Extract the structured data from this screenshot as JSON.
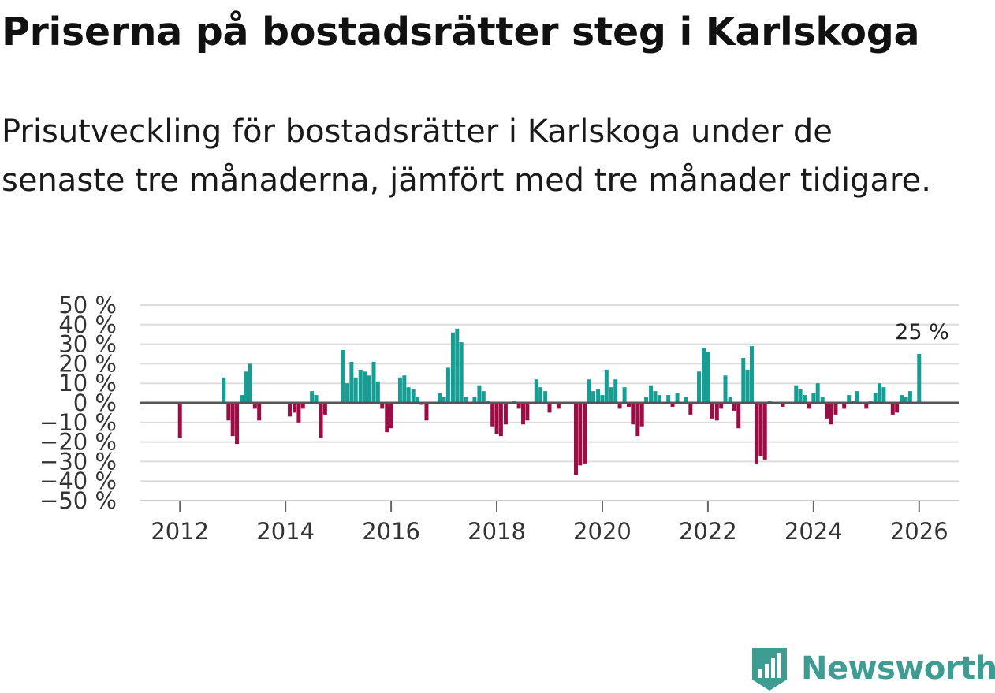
{
  "title": "Priserna på bostadsrätter steg i Karlskoga",
  "subtitle": "Prisutveckling för bostadsrätter i Karlskoga under de senaste tre månaderna, jämfört med tre månader tidigare.",
  "brand": {
    "name": "Newsworthy",
    "color": "#3f9c93"
  },
  "colors": {
    "positive": "#169e95",
    "negative": "#9c0c45",
    "grid": "#dddddd",
    "zero": "#555555"
  },
  "chart_data": {
    "type": "bar",
    "title": "Priserna på bostadsrätter steg i Karlskoga",
    "xlabel": "",
    "ylabel": "",
    "y_unit": " %",
    "ylim": [
      -50,
      50
    ],
    "y_ticks": [
      50,
      40,
      30,
      20,
      10,
      0,
      -10,
      -20,
      -30,
      -40,
      -50
    ],
    "y_tick_labels": [
      "50 %",
      "40 %",
      "30 %",
      "20 %",
      "10 %",
      "0 %",
      "−10 %",
      "−20 %",
      "−30 %",
      "−40 %",
      "−50 %"
    ],
    "xlim": [
      2011.25,
      2026.75
    ],
    "x_ticks": [
      2012,
      2014,
      2016,
      2018,
      2020,
      2022,
      2024,
      2026
    ],
    "x_tick_labels": [
      "2012",
      "2014",
      "2016",
      "2018",
      "2020",
      "2022",
      "2024",
      "2026"
    ],
    "grid": true,
    "annotation": {
      "text": "25 %",
      "x": 2026.0,
      "value": 25
    },
    "series": [
      {
        "name": "Prisutveckling",
        "points": [
          {
            "x": 2012.0,
            "y": -18
          },
          {
            "x": 2012.83,
            "y": 13
          },
          {
            "x": 2012.92,
            "y": -9
          },
          {
            "x": 2013.0,
            "y": -17
          },
          {
            "x": 2013.08,
            "y": -21
          },
          {
            "x": 2013.17,
            "y": 4
          },
          {
            "x": 2013.25,
            "y": 16
          },
          {
            "x": 2013.33,
            "y": 20
          },
          {
            "x": 2013.42,
            "y": -3
          },
          {
            "x": 2013.5,
            "y": -9
          },
          {
            "x": 2014.08,
            "y": -7
          },
          {
            "x": 2014.17,
            "y": -5
          },
          {
            "x": 2014.25,
            "y": -10
          },
          {
            "x": 2014.33,
            "y": -3
          },
          {
            "x": 2014.5,
            "y": 6
          },
          {
            "x": 2014.58,
            "y": 4
          },
          {
            "x": 2014.67,
            "y": -18
          },
          {
            "x": 2014.75,
            "y": -6
          },
          {
            "x": 2015.08,
            "y": 27
          },
          {
            "x": 2015.17,
            "y": 10
          },
          {
            "x": 2015.25,
            "y": 21
          },
          {
            "x": 2015.33,
            "y": 13
          },
          {
            "x": 2015.42,
            "y": 17
          },
          {
            "x": 2015.5,
            "y": 16
          },
          {
            "x": 2015.58,
            "y": 14
          },
          {
            "x": 2015.67,
            "y": 21
          },
          {
            "x": 2015.75,
            "y": 11
          },
          {
            "x": 2015.83,
            "y": -3
          },
          {
            "x": 2015.92,
            "y": -15
          },
          {
            "x": 2016.0,
            "y": -13
          },
          {
            "x": 2016.17,
            "y": 13
          },
          {
            "x": 2016.25,
            "y": 14
          },
          {
            "x": 2016.33,
            "y": 8
          },
          {
            "x": 2016.42,
            "y": 7
          },
          {
            "x": 2016.5,
            "y": 3
          },
          {
            "x": 2016.58,
            "y": -1
          },
          {
            "x": 2016.67,
            "y": -9
          },
          {
            "x": 2016.92,
            "y": 5
          },
          {
            "x": 2017.0,
            "y": 3
          },
          {
            "x": 2017.08,
            "y": 18
          },
          {
            "x": 2017.17,
            "y": 36
          },
          {
            "x": 2017.25,
            "y": 38
          },
          {
            "x": 2017.33,
            "y": 31
          },
          {
            "x": 2017.42,
            "y": 3
          },
          {
            "x": 2017.58,
            "y": 3
          },
          {
            "x": 2017.67,
            "y": 9
          },
          {
            "x": 2017.75,
            "y": 6
          },
          {
            "x": 2017.83,
            "y": 1
          },
          {
            "x": 2017.92,
            "y": -12
          },
          {
            "x": 2018.0,
            "y": -16
          },
          {
            "x": 2018.08,
            "y": -17
          },
          {
            "x": 2018.17,
            "y": -11
          },
          {
            "x": 2018.33,
            "y": 1
          },
          {
            "x": 2018.42,
            "y": -3
          },
          {
            "x": 2018.5,
            "y": -11
          },
          {
            "x": 2018.58,
            "y": -9
          },
          {
            "x": 2018.75,
            "y": 12
          },
          {
            "x": 2018.83,
            "y": 8
          },
          {
            "x": 2018.92,
            "y": 6
          },
          {
            "x": 2019.0,
            "y": -5
          },
          {
            "x": 2019.17,
            "y": -3
          },
          {
            "x": 2019.5,
            "y": -37
          },
          {
            "x": 2019.58,
            "y": -32
          },
          {
            "x": 2019.67,
            "y": -31
          },
          {
            "x": 2019.75,
            "y": 12
          },
          {
            "x": 2019.83,
            "y": 6
          },
          {
            "x": 2019.92,
            "y": 7
          },
          {
            "x": 2020.0,
            "y": 4
          },
          {
            "x": 2020.08,
            "y": 17
          },
          {
            "x": 2020.17,
            "y": 8
          },
          {
            "x": 2020.25,
            "y": 12
          },
          {
            "x": 2020.33,
            "y": -3
          },
          {
            "x": 2020.42,
            "y": 8
          },
          {
            "x": 2020.5,
            "y": -2
          },
          {
            "x": 2020.58,
            "y": -11
          },
          {
            "x": 2020.67,
            "y": -17
          },
          {
            "x": 2020.75,
            "y": -12
          },
          {
            "x": 2020.83,
            "y": 3
          },
          {
            "x": 2020.92,
            "y": 9
          },
          {
            "x": 2021.0,
            "y": 6
          },
          {
            "x": 2021.08,
            "y": 4
          },
          {
            "x": 2021.25,
            "y": 4
          },
          {
            "x": 2021.33,
            "y": -2
          },
          {
            "x": 2021.42,
            "y": 5
          },
          {
            "x": 2021.58,
            "y": 3
          },
          {
            "x": 2021.67,
            "y": -6
          },
          {
            "x": 2021.83,
            "y": 16
          },
          {
            "x": 2021.92,
            "y": 28
          },
          {
            "x": 2022.0,
            "y": 26
          },
          {
            "x": 2022.08,
            "y": -8
          },
          {
            "x": 2022.17,
            "y": -9
          },
          {
            "x": 2022.25,
            "y": -3
          },
          {
            "x": 2022.33,
            "y": 14
          },
          {
            "x": 2022.42,
            "y": 3
          },
          {
            "x": 2022.5,
            "y": -4
          },
          {
            "x": 2022.58,
            "y": -13
          },
          {
            "x": 2022.67,
            "y": 23
          },
          {
            "x": 2022.75,
            "y": 17
          },
          {
            "x": 2022.83,
            "y": 29
          },
          {
            "x": 2022.92,
            "y": -31
          },
          {
            "x": 2023.0,
            "y": -27
          },
          {
            "x": 2023.08,
            "y": -29
          },
          {
            "x": 2023.17,
            "y": 1
          },
          {
            "x": 2023.42,
            "y": -2
          },
          {
            "x": 2023.67,
            "y": 9
          },
          {
            "x": 2023.75,
            "y": 7
          },
          {
            "x": 2023.83,
            "y": 4
          },
          {
            "x": 2023.92,
            "y": -3
          },
          {
            "x": 2024.0,
            "y": 5
          },
          {
            "x": 2024.08,
            "y": 10
          },
          {
            "x": 2024.17,
            "y": 3
          },
          {
            "x": 2024.25,
            "y": -8
          },
          {
            "x": 2024.33,
            "y": -11
          },
          {
            "x": 2024.42,
            "y": -6
          },
          {
            "x": 2024.58,
            "y": -3
          },
          {
            "x": 2024.67,
            "y": 4
          },
          {
            "x": 2024.75,
            "y": 1
          },
          {
            "x": 2024.83,
            "y": 6
          },
          {
            "x": 2025.0,
            "y": -3
          },
          {
            "x": 2025.08,
            "y": 1
          },
          {
            "x": 2025.17,
            "y": 5
          },
          {
            "x": 2025.25,
            "y": 10
          },
          {
            "x": 2025.33,
            "y": 8
          },
          {
            "x": 2025.5,
            "y": -6
          },
          {
            "x": 2025.58,
            "y": -5
          },
          {
            "x": 2025.67,
            "y": 4
          },
          {
            "x": 2025.75,
            "y": 3
          },
          {
            "x": 2025.83,
            "y": 6
          },
          {
            "x": 2026.0,
            "y": 25
          }
        ]
      }
    ]
  }
}
